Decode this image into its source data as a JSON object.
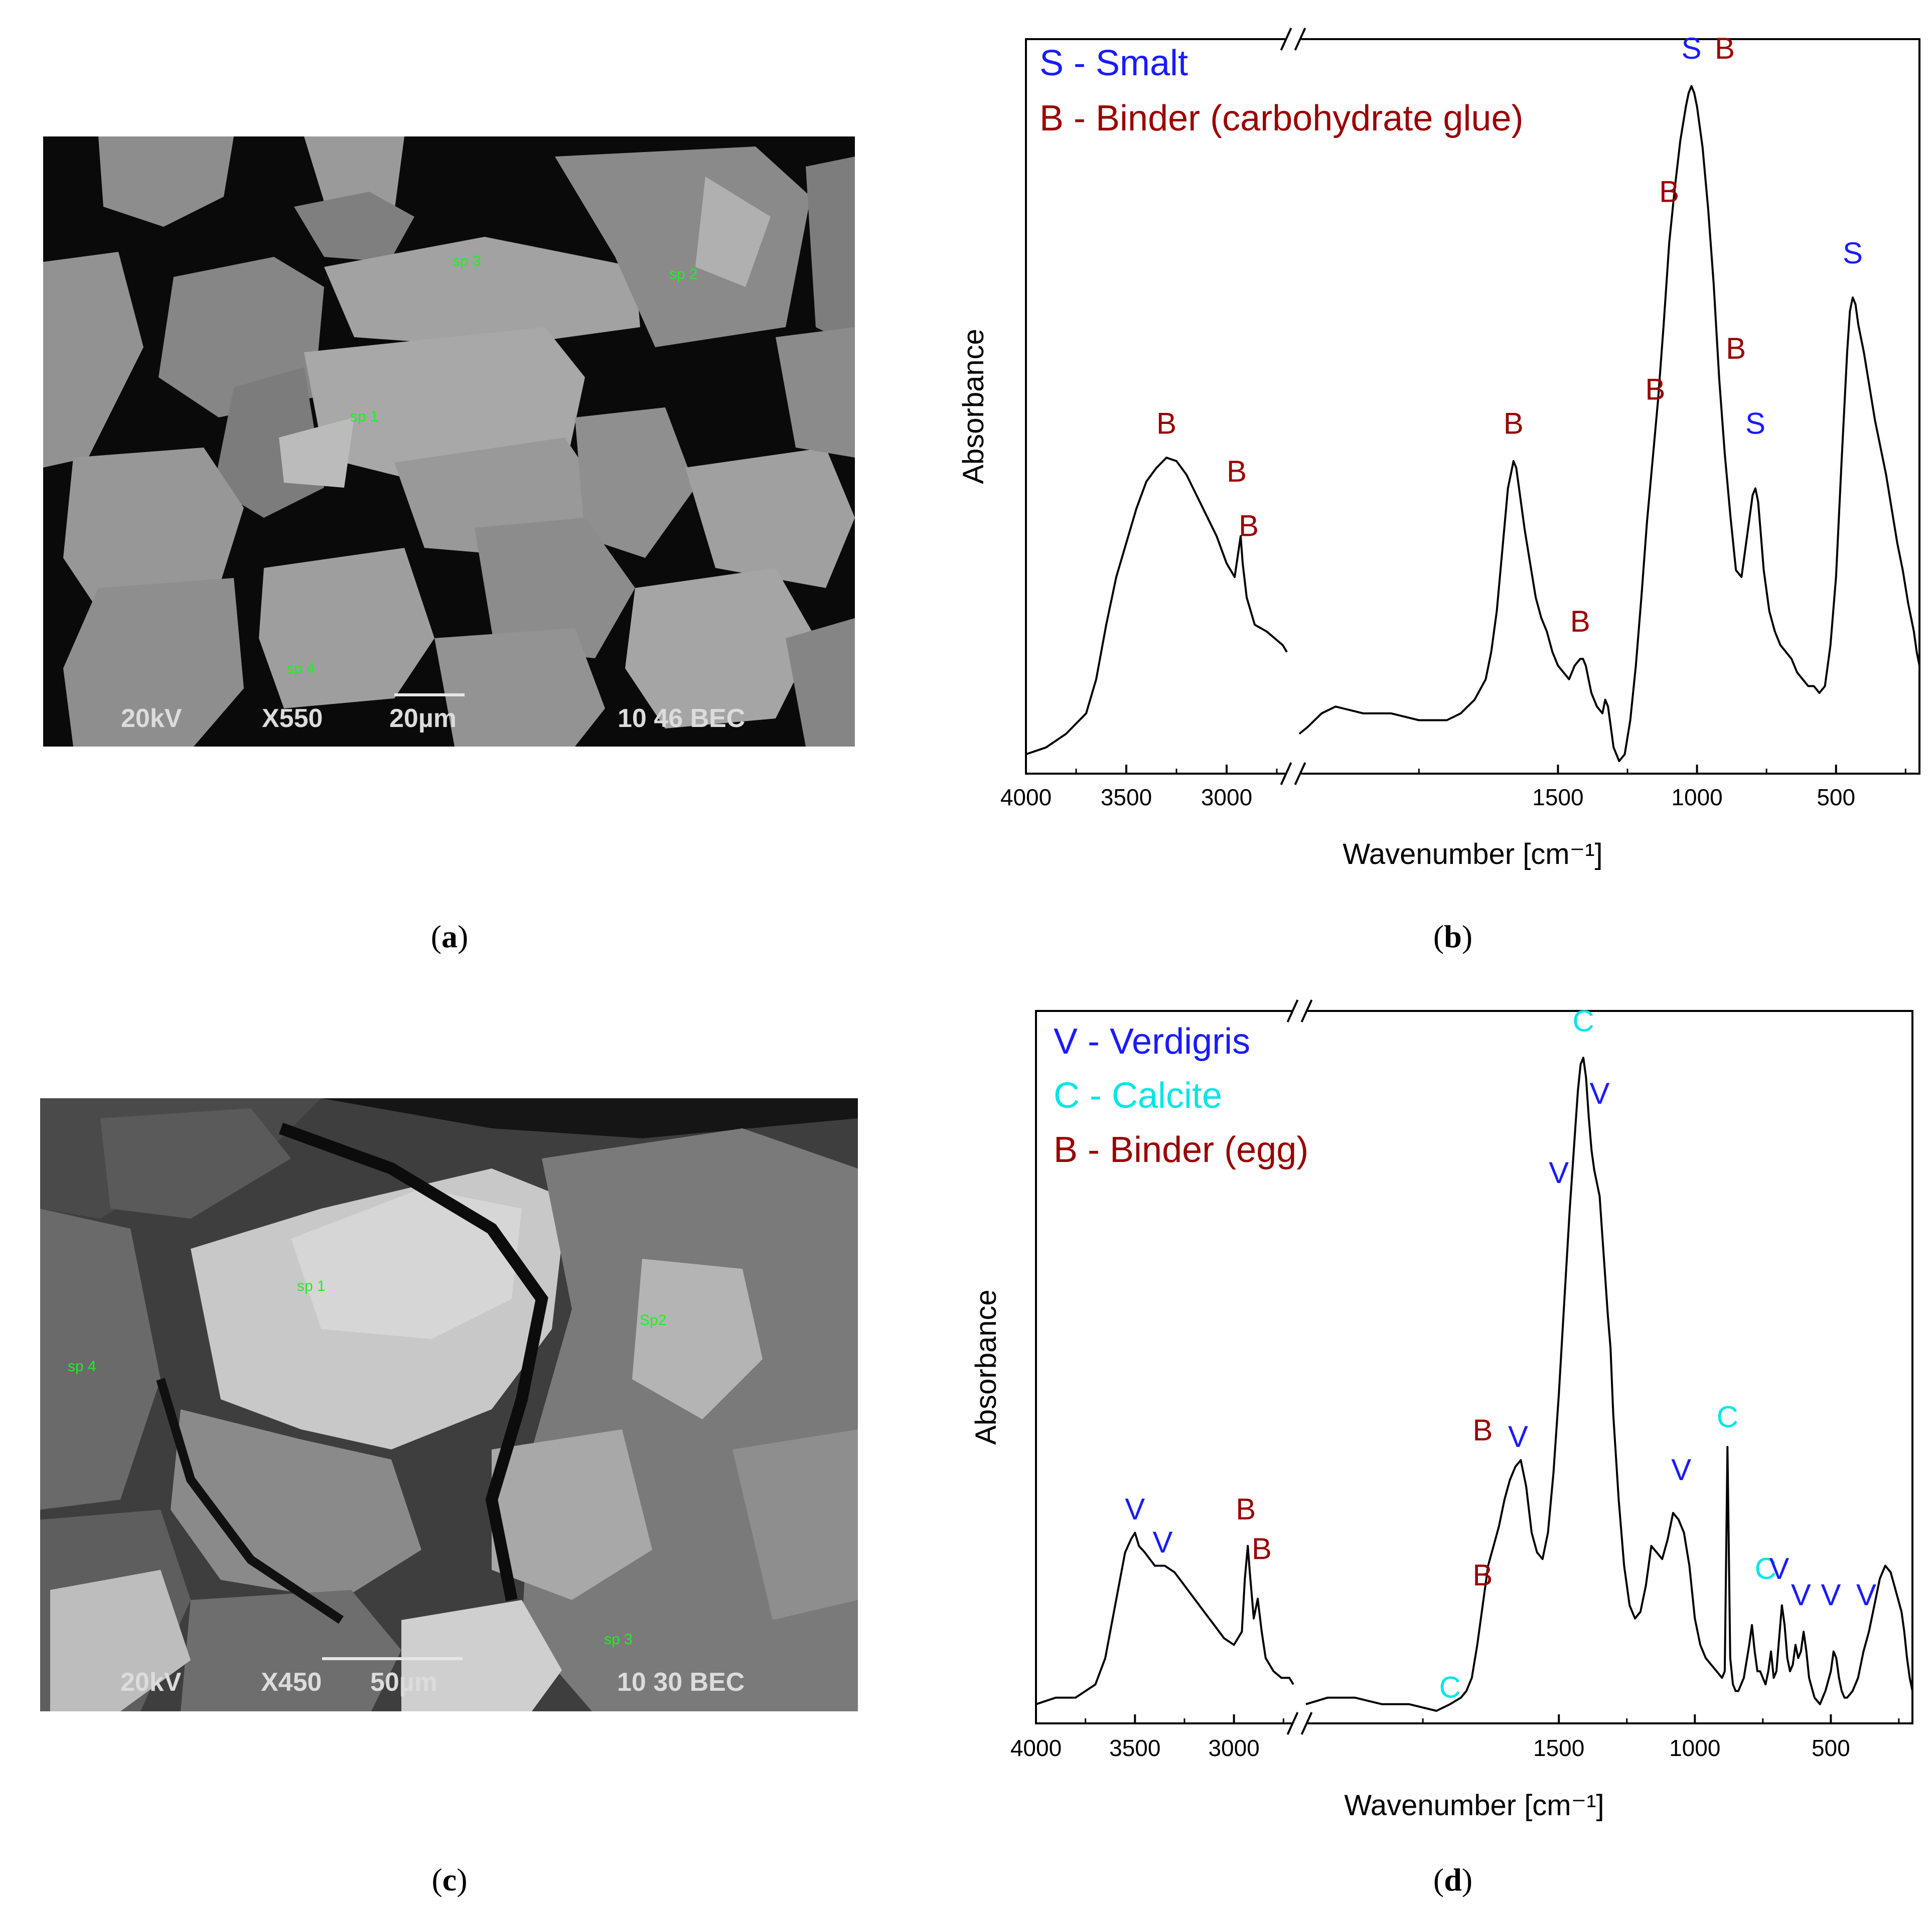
{
  "panels": {
    "a": {
      "label": "a"
    },
    "b": {
      "label": "b"
    },
    "c": {
      "label": "c"
    },
    "d": {
      "label": "d"
    }
  },
  "sem_a": {
    "kv": "20kV",
    "mag": "X550",
    "scale": "20µm",
    "id": "10 46 BEC",
    "spots": [
      "sp 1",
      "sp 2",
      "sp 3",
      "sp 4"
    ]
  },
  "sem_c": {
    "kv": "20kV",
    "mag": "X450",
    "scale": "50µm",
    "id": "10 30 BEC",
    "spots": [
      "sp 1",
      "Sp2",
      "sp 3",
      "sp 4"
    ]
  },
  "colors": {
    "blue": "#1a1aff",
    "darkred": "#990000",
    "cyan": "#00e5e5",
    "spot_green": "#22ee22"
  },
  "chart_data": [
    {
      "id": "b",
      "type": "line",
      "xlabel": "Wavenumber [cm⁻¹]",
      "ylabel": "Absorbance",
      "x_reversed": true,
      "x_broken": true,
      "segments": [
        {
          "x": [
            4000,
            2700
          ]
        },
        {
          "x": [
            2430,
            200
          ]
        }
      ],
      "xticks": [
        "4000",
        "3500",
        "3000",
        "1500",
        "1000",
        "500"
      ],
      "xtick_values": [
        4000,
        3500,
        3000,
        1500,
        1000,
        500
      ],
      "legend": [
        {
          "text": "S - Smalt",
          "color": "blue"
        },
        {
          "text": "B - Binder (carbohydrate glue)",
          "color": "darkred"
        }
      ],
      "series": [
        {
          "x": [
            4000,
            3900,
            3800,
            3700,
            3650,
            3600,
            3550,
            3500,
            3450,
            3400,
            3350,
            3300,
            3250,
            3200,
            3150,
            3100,
            3050,
            3000,
            2960,
            2945,
            2930,
            2920,
            2900,
            2880,
            2860,
            2800,
            2760,
            2720,
            2700
          ]
        },
        {
          "y": [
            0.01,
            0.02,
            0.04,
            0.07,
            0.12,
            0.2,
            0.27,
            0.32,
            0.37,
            0.41,
            0.43,
            0.445,
            0.44,
            0.42,
            0.39,
            0.36,
            0.33,
            0.29,
            0.27,
            0.3,
            0.33,
            0.29,
            0.24,
            0.22,
            0.2,
            0.19,
            0.18,
            0.17,
            0.16
          ]
        },
        {
          "x": [
            2430,
            2400,
            2350,
            2300,
            2200,
            2100,
            2000,
            1900,
            1850,
            1800,
            1760,
            1740,
            1720,
            1700,
            1680,
            1660,
            1650,
            1640,
            1620,
            1600,
            1580,
            1560,
            1540,
            1520,
            1500,
            1480,
            1460,
            1440,
            1420,
            1410,
            1400,
            1390,
            1380,
            1360,
            1340,
            1330,
            1320,
            1310,
            1300,
            1280,
            1260,
            1240,
            1220,
            1200,
            1180,
            1160,
            1140,
            1120,
            1100,
            1080,
            1060,
            1040,
            1030,
            1020,
            1010,
            1000,
            980,
            960,
            940,
            920,
            900,
            880,
            860,
            840,
            820,
            800,
            790,
            780,
            770,
            760,
            740,
            720,
            700,
            680,
            660,
            640,
            620,
            600,
            580,
            560,
            540,
            520,
            500,
            480,
            460,
            450,
            440,
            430,
            420,
            400,
            380,
            360,
            340,
            320,
            300,
            280,
            260,
            240,
            220,
            210,
            200
          ]
        },
        {
          "y": [
            0.04,
            0.05,
            0.07,
            0.08,
            0.07,
            0.07,
            0.06,
            0.06,
            0.07,
            0.09,
            0.12,
            0.16,
            0.22,
            0.31,
            0.4,
            0.44,
            0.43,
            0.4,
            0.34,
            0.29,
            0.24,
            0.21,
            0.19,
            0.16,
            0.14,
            0.13,
            0.12,
            0.14,
            0.15,
            0.15,
            0.14,
            0.12,
            0.1,
            0.08,
            0.07,
            0.09,
            0.08,
            0.05,
            0.02,
            0.0,
            0.01,
            0.06,
            0.14,
            0.24,
            0.35,
            0.44,
            0.53,
            0.64,
            0.76,
            0.84,
            0.91,
            0.96,
            0.98,
            0.99,
            0.98,
            0.96,
            0.9,
            0.81,
            0.7,
            0.56,
            0.45,
            0.36,
            0.28,
            0.27,
            0.33,
            0.39,
            0.4,
            0.38,
            0.33,
            0.28,
            0.22,
            0.19,
            0.17,
            0.16,
            0.15,
            0.13,
            0.12,
            0.11,
            0.11,
            0.1,
            0.11,
            0.17,
            0.27,
            0.44,
            0.6,
            0.66,
            0.68,
            0.67,
            0.64,
            0.6,
            0.55,
            0.5,
            0.46,
            0.42,
            0.37,
            0.32,
            0.28,
            0.23,
            0.19,
            0.16,
            0.14
          ]
        }
      ],
      "annotations": [
        {
          "text": "S",
          "color": "blue",
          "x": 1020,
          "y": 1.03
        },
        {
          "text": "B",
          "color": "darkred",
          "x": 900,
          "y": 1.03
        },
        {
          "text": "B",
          "color": "darkred",
          "x": 1100,
          "y": 0.82
        },
        {
          "text": "B",
          "color": "darkred",
          "x": 1150,
          "y": 0.53
        },
        {
          "text": "B",
          "color": "darkred",
          "x": 860,
          "y": 0.59
        },
        {
          "text": "S",
          "color": "blue",
          "x": 440,
          "y": 0.73
        },
        {
          "text": "S",
          "color": "blue",
          "x": 790,
          "y": 0.48
        },
        {
          "text": "B",
          "color": "darkred",
          "x": 1660,
          "y": 0.48
        },
        {
          "text": "B",
          "color": "darkred",
          "x": 1420,
          "y": 0.19
        },
        {
          "text": "B",
          "color": "darkred",
          "x": 3300,
          "y": 0.48
        },
        {
          "text": "B",
          "color": "darkred",
          "x": 2950,
          "y": 0.41
        },
        {
          "text": "B",
          "color": "darkred",
          "x": 2890,
          "y": 0.33
        }
      ]
    },
    {
      "id": "d",
      "type": "line",
      "xlabel": "Wavenumber [cm⁻¹]",
      "ylabel": "Absorbance",
      "x_reversed": true,
      "x_broken": true,
      "segments": [
        {
          "x": [
            4000,
            2700
          ]
        },
        {
          "x": [
            2430,
            200
          ]
        }
      ],
      "xticks": [
        "4000",
        "3500",
        "3000",
        "1500",
        "1000",
        "500"
      ],
      "xtick_values": [
        4000,
        3500,
        3000,
        1500,
        1000,
        500
      ],
      "legend": [
        {
          "text": "V - Verdigris",
          "color": "blue"
        },
        {
          "text": "C - Calcite",
          "color": "cyan"
        },
        {
          "text": "B - Binder (egg)",
          "color": "darkred"
        }
      ],
      "series": [
        {
          "x": [
            4000,
            3900,
            3800,
            3700,
            3650,
            3600,
            3550,
            3520,
            3500,
            3480,
            3450,
            3400,
            3350,
            3300,
            3250,
            3200,
            3150,
            3100,
            3050,
            3000,
            2960,
            2945,
            2930,
            2920,
            2900,
            2880,
            2860,
            2840,
            2800,
            2760,
            2720,
            2700
          ]
        },
        {
          "y": [
            0.01,
            0.02,
            0.02,
            0.04,
            0.08,
            0.16,
            0.24,
            0.26,
            0.27,
            0.25,
            0.24,
            0.22,
            0.22,
            0.21,
            0.19,
            0.17,
            0.15,
            0.13,
            0.11,
            0.1,
            0.12,
            0.2,
            0.25,
            0.21,
            0.14,
            0.17,
            0.12,
            0.08,
            0.06,
            0.05,
            0.05,
            0.04
          ]
        },
        {
          "x": [
            2430,
            2350,
            2250,
            2150,
            2050,
            1950,
            1900,
            1860,
            1840,
            1820,
            1800,
            1780,
            1760,
            1740,
            1720,
            1700,
            1680,
            1660,
            1640,
            1620,
            1600,
            1580,
            1560,
            1540,
            1520,
            1500,
            1480,
            1460,
            1440,
            1430,
            1420,
            1410,
            1400,
            1390,
            1380,
            1370,
            1360,
            1350,
            1340,
            1330,
            1320,
            1310,
            1300,
            1280,
            1260,
            1240,
            1220,
            1200,
            1180,
            1160,
            1140,
            1120,
            1100,
            1080,
            1060,
            1050,
            1040,
            1020,
            1000,
            980,
            960,
            940,
            920,
            900,
            890,
            880,
            870,
            860,
            850,
            840,
            820,
            800,
            790,
            780,
            770,
            760,
            740,
            730,
            720,
            710,
            700,
            690,
            680,
            670,
            660,
            650,
            640,
            630,
            620,
            610,
            600,
            590,
            580,
            560,
            540,
            520,
            500,
            490,
            480,
            470,
            460,
            450,
            440,
            420,
            400,
            380,
            360,
            340,
            320,
            300,
            280,
            260,
            240,
            230,
            220,
            210,
            200
          ]
        },
        {
          "y": [
            0.01,
            0.02,
            0.02,
            0.01,
            0.01,
            0.0,
            0.01,
            0.02,
            0.03,
            0.05,
            0.1,
            0.16,
            0.22,
            0.25,
            0.28,
            0.32,
            0.35,
            0.37,
            0.38,
            0.34,
            0.27,
            0.24,
            0.23,
            0.27,
            0.36,
            0.48,
            0.62,
            0.76,
            0.88,
            0.94,
            0.98,
            0.99,
            0.96,
            0.9,
            0.85,
            0.82,
            0.8,
            0.78,
            0.72,
            0.66,
            0.6,
            0.55,
            0.45,
            0.32,
            0.22,
            0.16,
            0.14,
            0.15,
            0.19,
            0.25,
            0.24,
            0.23,
            0.26,
            0.3,
            0.29,
            0.28,
            0.27,
            0.22,
            0.14,
            0.1,
            0.08,
            0.07,
            0.06,
            0.05,
            0.06,
            0.4,
            0.08,
            0.04,
            0.03,
            0.03,
            0.05,
            0.1,
            0.13,
            0.09,
            0.06,
            0.06,
            0.04,
            0.06,
            0.09,
            0.05,
            0.06,
            0.11,
            0.16,
            0.13,
            0.08,
            0.06,
            0.07,
            0.1,
            0.08,
            0.09,
            0.12,
            0.09,
            0.05,
            0.02,
            0.01,
            0.03,
            0.06,
            0.09,
            0.08,
            0.05,
            0.03,
            0.02,
            0.02,
            0.03,
            0.05,
            0.09,
            0.12,
            0.16,
            0.2,
            0.22,
            0.21,
            0.18,
            0.15,
            0.12,
            0.08,
            0.05,
            0.03
          ]
        }
      ],
      "annotations": [
        {
          "text": "C",
          "color": "cyan",
          "x": 1410,
          "y": 1.03
        },
        {
          "text": "V",
          "color": "blue",
          "x": 1350,
          "y": 0.92
        },
        {
          "text": "V",
          "color": "blue",
          "x": 1500,
          "y": 0.8
        },
        {
          "text": "B",
          "color": "darkred",
          "x": 1780,
          "y": 0.41
        },
        {
          "text": "V",
          "color": "blue",
          "x": 1650,
          "y": 0.4
        },
        {
          "text": "B",
          "color": "darkred",
          "x": 1780,
          "y": 0.19
        },
        {
          "text": "C",
          "color": "cyan",
          "x": 1900,
          "y": 0.02
        },
        {
          "text": "V",
          "color": "blue",
          "x": 1050,
          "y": 0.35
        },
        {
          "text": "C",
          "color": "cyan",
          "x": 880,
          "y": 0.43
        },
        {
          "text": "C",
          "color": "cyan",
          "x": 740,
          "y": 0.2
        },
        {
          "text": "V",
          "color": "blue",
          "x": 690,
          "y": 0.2
        },
        {
          "text": "V",
          "color": "blue",
          "x": 610,
          "y": 0.16
        },
        {
          "text": "V",
          "color": "blue",
          "x": 500,
          "y": 0.16
        },
        {
          "text": "V",
          "color": "blue",
          "x": 370,
          "y": 0.16
        },
        {
          "text": "V",
          "color": "blue",
          "x": 3500,
          "y": 0.29
        },
        {
          "text": "V",
          "color": "blue",
          "x": 3360,
          "y": 0.24
        },
        {
          "text": "B",
          "color": "darkred",
          "x": 2940,
          "y": 0.29
        },
        {
          "text": "B",
          "color": "darkred",
          "x": 2860,
          "y": 0.23
        }
      ]
    }
  ]
}
